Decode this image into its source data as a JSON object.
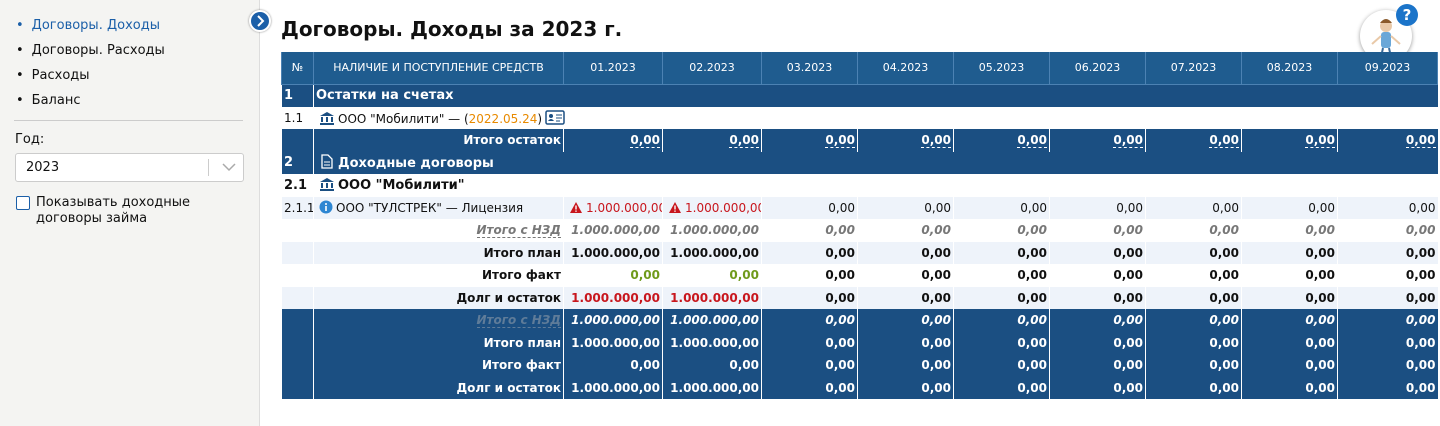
{
  "sidebar": {
    "nav": [
      "Договоры. Доходы",
      "Договоры. Расходы",
      "Расходы",
      "Баланс"
    ],
    "year_label": "Год:",
    "year": "2023",
    "checkbox_label": "Показывать доходные договоры займа"
  },
  "header": {
    "title": "Договоры. Доходы за 2023 г.",
    "help": "?"
  },
  "table": {
    "columns": [
      "№",
      "НАЛИЧИЕ И ПОСТУПЛЕНИЕ СРЕДСТВ",
      "01.2023",
      "02.2023",
      "03.2023",
      "04.2023",
      "05.2023",
      "06.2023",
      "07.2023",
      "08.2023",
      "09.2023"
    ],
    "rows": [
      {
        "num": "1",
        "label": "Остатки на счетах"
      },
      {
        "num": "1.1",
        "name": "ООО \"Мобилити\" — (",
        "date": "2022.05.24",
        "close": ")"
      },
      {
        "label": "Итого остаток",
        "values": [
          "0,00",
          "0,00",
          "0,00",
          "0,00",
          "0,00",
          "0,00",
          "0,00",
          "0,00",
          "0,00"
        ]
      },
      {
        "num": "2",
        "label": "Доходные договоры"
      },
      {
        "num": "2.1",
        "label": "ООО \"Мобилити\""
      },
      {
        "num": "2.1.1",
        "label": "ООО \"ТУЛСТРЕК\" — Лицензия",
        "values": [
          "1.000.000,00",
          "1.000.000,00",
          "0,00",
          "0,00",
          "0,00",
          "0,00",
          "0,00",
          "0,00",
          "0,00"
        ]
      },
      {
        "label": "Итого с НЗД",
        "values": [
          "1.000.000,00",
          "1.000.000,00",
          "0,00",
          "0,00",
          "0,00",
          "0,00",
          "0,00",
          "0,00",
          "0,00"
        ]
      },
      {
        "label": "Итого план",
        "values": [
          "1.000.000,00",
          "1.000.000,00",
          "0,00",
          "0,00",
          "0,00",
          "0,00",
          "0,00",
          "0,00",
          "0,00"
        ]
      },
      {
        "label": "Итого факт",
        "values": [
          "0,00",
          "0,00",
          "0,00",
          "0,00",
          "0,00",
          "0,00",
          "0,00",
          "0,00",
          "0,00"
        ]
      },
      {
        "label": "Долг и остаток",
        "values": [
          "1.000.000,00",
          "1.000.000,00",
          "0,00",
          "0,00",
          "0,00",
          "0,00",
          "0,00",
          "0,00",
          "0,00"
        ]
      },
      {
        "label": "Итого с НЗД",
        "values": [
          "1.000.000,00",
          "1.000.000,00",
          "0,00",
          "0,00",
          "0,00",
          "0,00",
          "0,00",
          "0,00",
          "0,00"
        ]
      },
      {
        "label": "Итого план",
        "values": [
          "1.000.000,00",
          "1.000.000,00",
          "0,00",
          "0,00",
          "0,00",
          "0,00",
          "0,00",
          "0,00",
          "0,00"
        ]
      },
      {
        "label": "Итого факт",
        "values": [
          "0,00",
          "0,00",
          "0,00",
          "0,00",
          "0,00",
          "0,00",
          "0,00",
          "0,00",
          "0,00"
        ]
      },
      {
        "label": "Долг и остаток",
        "values": [
          "1.000.000,00",
          "1.000.000,00",
          "0,00",
          "0,00",
          "0,00",
          "0,00",
          "0,00",
          "0,00",
          "0,00"
        ]
      }
    ]
  }
}
